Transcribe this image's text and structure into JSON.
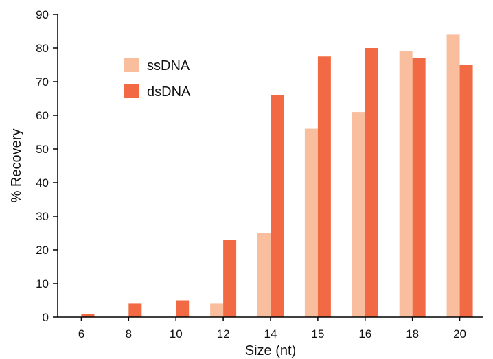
{
  "chart_data": {
    "type": "bar",
    "title": "",
    "xlabel": "Size (nt)",
    "ylabel": "% Recovery",
    "ylim": [
      0,
      90
    ],
    "yticks": [
      0,
      10,
      20,
      30,
      40,
      50,
      60,
      70,
      80,
      90
    ],
    "categories": [
      "6",
      "8",
      "10",
      "12",
      "14",
      "15",
      "16",
      "18",
      "20"
    ],
    "series": [
      {
        "name": "ssDNA",
        "color": "#f9be9e",
        "values": [
          0,
          0,
          0,
          4,
          25,
          56,
          61,
          79,
          84
        ]
      },
      {
        "name": "dsDNA",
        "color": "#f26a43",
        "values": [
          1,
          4,
          5,
          23,
          66,
          77.5,
          80,
          77,
          75
        ]
      }
    ],
    "legend_position": "top-left",
    "grid": false
  }
}
